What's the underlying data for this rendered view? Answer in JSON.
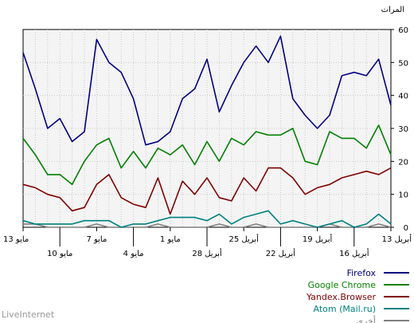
{
  "branding": "LiveInternet",
  "chart_data": {
    "type": "line",
    "ylabel": "المرات",
    "ylim": [
      0,
      60
    ],
    "y_ticks": [
      "0",
      "10",
      "20",
      "30",
      "40",
      "50",
      "60"
    ],
    "grid": true,
    "legend_position": "bottom-right",
    "x_tick_labels_row1": [
      "13 مايو",
      "7 مايو",
      "1 مايو",
      "25 أبريل",
      "19 أبريل",
      "13 أبريل"
    ],
    "x_tick_labels_row2": [
      "10 مايو",
      "4 مايو",
      "28 أبريل",
      "22 أبريل",
      "16 أبريل"
    ],
    "series": [
      {
        "name": "Firefox",
        "color": "#000080",
        "values": [
          53,
          42,
          30,
          33,
          26,
          29,
          57,
          50,
          47,
          39,
          25,
          26,
          29,
          39,
          42,
          51,
          35,
          43,
          50,
          55,
          50,
          58,
          39,
          34,
          30,
          34,
          46,
          47,
          46,
          51,
          37
        ]
      },
      {
        "name": "Google Chrome",
        "color": "#008000",
        "values": [
          27,
          22,
          16,
          16,
          13,
          20,
          25,
          27,
          18,
          23,
          18,
          24,
          22,
          25,
          19,
          26,
          20,
          27,
          25,
          29,
          28,
          28,
          30,
          20,
          19,
          29,
          27,
          27,
          24,
          31,
          22
        ]
      },
      {
        "name": "Yandex.Browser",
        "color": "#800000",
        "values": [
          13,
          12,
          10,
          9,
          5,
          6,
          13,
          16,
          9,
          7,
          6,
          15,
          4,
          14,
          10,
          15,
          9,
          8,
          15,
          11,
          18,
          18,
          15,
          10,
          12,
          13,
          15,
          16,
          17,
          16,
          18
        ]
      },
      {
        "name": "Atom (Mail.ru)",
        "color": "#008080",
        "values": [
          2,
          1,
          1,
          1,
          1,
          2,
          2,
          2,
          0,
          1,
          1,
          2,
          3,
          3,
          3,
          2,
          4,
          1,
          3,
          4,
          5,
          1,
          2,
          1,
          0,
          1,
          2,
          0,
          1,
          4,
          1
        ]
      },
      {
        "name": "أخرى",
        "color": "#808080",
        "values": [
          1,
          1,
          0,
          0,
          0,
          0,
          1,
          0,
          0,
          0,
          0,
          1,
          0,
          0,
          0,
          0,
          1,
          0,
          0,
          1,
          0,
          0,
          0,
          0,
          0,
          1,
          0,
          0,
          0,
          1,
          0
        ]
      }
    ]
  }
}
